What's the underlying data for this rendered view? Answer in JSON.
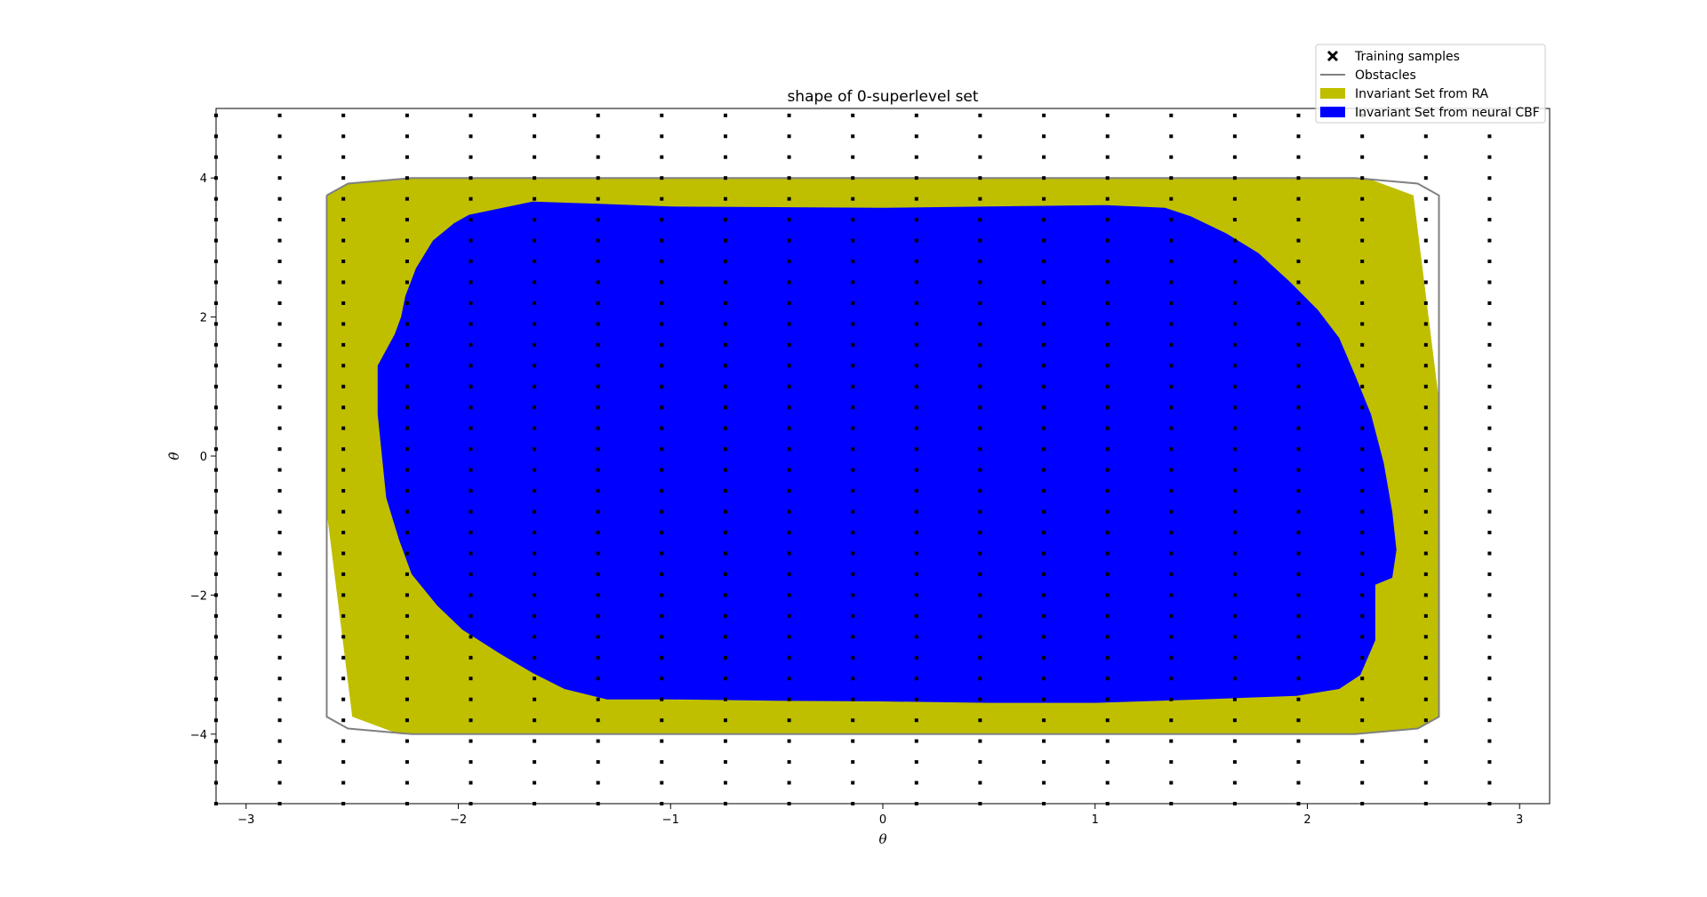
{
  "chart_data": {
    "type": "scatter",
    "title": "shape of 0-superlevel set",
    "xlabel": "θ",
    "ylabel": "θ̇",
    "xlim": [
      -3.1416,
      3.1416
    ],
    "ylim": [
      -5,
      5
    ],
    "xticks": [
      -3,
      -2,
      -1,
      0,
      1,
      2,
      3
    ],
    "yticks": [
      -4,
      -2,
      0,
      2,
      4
    ],
    "grid": false,
    "legend_position": "top-right",
    "colors": {
      "samples": "#000000",
      "obstacles": "#808080",
      "ra_set": "#bfbf00",
      "cbf_set": "#0000ff"
    },
    "legend": [
      {
        "label": "Training samples",
        "kind": "marker",
        "color": "#000000"
      },
      {
        "label": "Obstacles",
        "kind": "line",
        "color": "#808080"
      },
      {
        "label": "Invariant Set from RA",
        "kind": "patch",
        "color": "#bfbf00"
      },
      {
        "label": "Invariant Set from neural CBF",
        "kind": "patch",
        "color": "#0000ff"
      }
    ],
    "series": [
      {
        "name": "Training samples",
        "type": "scatter",
        "x_grid": [
          -3.1416,
          -2.8416,
          -2.5416,
          -2.2416,
          -1.9416,
          -1.6416,
          -1.3416,
          -1.0416,
          -0.7416,
          -0.4416,
          -0.1416,
          0.1584,
          0.4584,
          0.7584,
          1.0584,
          1.3584,
          1.6584,
          1.9584,
          2.2584,
          2.5584,
          2.8584
        ],
        "y_grid": [
          -5.0,
          -4.7,
          -4.4,
          -4.1,
          -3.8,
          -3.5,
          -3.2,
          -2.9,
          -2.6,
          -2.3,
          -2.0,
          -1.7,
          -1.4,
          -1.1,
          -0.8,
          -0.5,
          -0.2,
          0.1,
          0.4,
          0.7,
          1.0,
          1.3,
          1.6,
          1.9,
          2.2,
          2.5,
          2.8,
          3.1,
          3.4,
          3.7,
          4.0,
          4.3,
          4.6,
          4.9
        ]
      },
      {
        "name": "Obstacles",
        "type": "line",
        "points": [
          [
            -2.62,
            3.75
          ],
          [
            -2.52,
            3.92
          ],
          [
            -2.22,
            4.0
          ],
          [
            2.22,
            4.0
          ],
          [
            2.52,
            3.92
          ],
          [
            2.62,
            3.75
          ],
          [
            2.62,
            -3.75
          ],
          [
            2.52,
            -3.92
          ],
          [
            2.22,
            -4.0
          ],
          [
            -2.22,
            -4.0
          ],
          [
            -2.52,
            -3.92
          ],
          [
            -2.62,
            -3.75
          ],
          [
            -2.62,
            3.75
          ]
        ]
      },
      {
        "name": "Invariant Set from RA",
        "type": "area",
        "points": [
          [
            -2.62,
            3.75
          ],
          [
            -2.52,
            3.92
          ],
          [
            -2.22,
            4.0
          ],
          [
            2.28,
            4.0
          ],
          [
            2.5,
            3.75
          ],
          [
            2.62,
            0.8
          ],
          [
            2.62,
            -3.75
          ],
          [
            2.52,
            -3.92
          ],
          [
            2.22,
            -4.0
          ],
          [
            -2.28,
            -4.0
          ],
          [
            -2.5,
            -3.75
          ],
          [
            -2.62,
            -0.8
          ]
        ]
      },
      {
        "name": "Invariant Set from neural CBF",
        "type": "area",
        "points": [
          [
            -2.25,
            2.3
          ],
          [
            -2.2,
            2.7
          ],
          [
            -2.12,
            3.1
          ],
          [
            -2.02,
            3.35
          ],
          [
            -1.95,
            3.47
          ],
          [
            -1.65,
            3.66
          ],
          [
            -1.35,
            3.63
          ],
          [
            -1.0,
            3.59
          ],
          [
            -0.5,
            3.58
          ],
          [
            0.0,
            3.57
          ],
          [
            0.5,
            3.59
          ],
          [
            1.05,
            3.61
          ],
          [
            1.33,
            3.57
          ],
          [
            1.45,
            3.45
          ],
          [
            1.62,
            3.2
          ],
          [
            1.77,
            2.92
          ],
          [
            1.92,
            2.5
          ],
          [
            2.05,
            2.1
          ],
          [
            2.15,
            1.7
          ],
          [
            2.22,
            1.2
          ],
          [
            2.3,
            0.6
          ],
          [
            2.36,
            -0.1
          ],
          [
            2.4,
            -0.8
          ],
          [
            2.42,
            -1.35
          ],
          [
            2.4,
            -1.75
          ],
          [
            2.32,
            -1.85
          ],
          [
            2.32,
            -2.65
          ],
          [
            2.25,
            -3.15
          ],
          [
            2.15,
            -3.35
          ],
          [
            1.95,
            -3.45
          ],
          [
            1.5,
            -3.5
          ],
          [
            1.0,
            -3.55
          ],
          [
            0.5,
            -3.55
          ],
          [
            0.0,
            -3.53
          ],
          [
            -0.5,
            -3.52
          ],
          [
            -1.0,
            -3.5
          ],
          [
            -1.3,
            -3.5
          ],
          [
            -1.5,
            -3.35
          ],
          [
            -1.65,
            -3.12
          ],
          [
            -1.8,
            -2.85
          ],
          [
            -1.98,
            -2.5
          ],
          [
            -2.1,
            -2.15
          ],
          [
            -2.22,
            -1.7
          ],
          [
            -2.28,
            -1.2
          ],
          [
            -2.34,
            -0.6
          ],
          [
            -2.36,
            0.0
          ],
          [
            -2.38,
            0.6
          ],
          [
            -2.38,
            1.3
          ],
          [
            -2.3,
            1.75
          ],
          [
            -2.27,
            2.0
          ]
        ]
      }
    ]
  }
}
